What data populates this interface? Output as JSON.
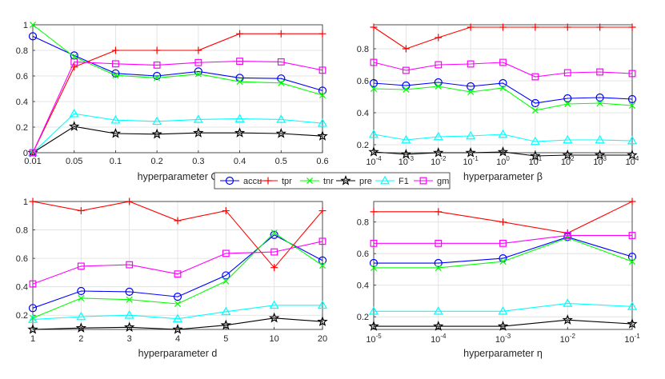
{
  "chart_data": {
    "type": "line",
    "legend": {
      "placement": "center",
      "entries": [
        {
          "name": "accu",
          "color": "#0000ff",
          "marker": "circle"
        },
        {
          "name": "tpr",
          "color": "#ff0000",
          "marker": "plus"
        },
        {
          "name": "tnr",
          "color": "#00ff00",
          "marker": "x"
        },
        {
          "name": "pre",
          "color": "#000000",
          "marker": "star"
        },
        {
          "name": "F1",
          "color": "#00ffff",
          "marker": "triangle"
        },
        {
          "name": "gm",
          "color": "#ff00ff",
          "marker": "square"
        }
      ]
    },
    "panels": [
      {
        "id": "c",
        "xlabel": "hyperparameter C",
        "ylim": [
          0,
          1
        ],
        "yticks": [
          0,
          0.2,
          0.4,
          0.6,
          0.8,
          1
        ],
        "ytick_labels": [
          "0",
          "0.2",
          "0.4",
          "0.6",
          "0.8",
          "1"
        ],
        "categories": [
          "0.01",
          "0.05",
          "0.1",
          "0.2",
          "0.3",
          "0.4",
          "0.5",
          "0.6"
        ],
        "series": [
          {
            "name": "accu",
            "values": [
              0.91,
              0.76,
              0.62,
              0.6,
              0.635,
              0.585,
              0.58,
              0.485
            ]
          },
          {
            "name": "tpr",
            "values": [
              0.0,
              0.67,
              0.8,
              0.8,
              0.8,
              0.93,
              0.93,
              0.93
            ]
          },
          {
            "name": "tnr",
            "values": [
              1.0,
              0.75,
              0.605,
              0.585,
              0.615,
              0.555,
              0.545,
              0.45
            ]
          },
          {
            "name": "pre",
            "values": [
              0.0,
              0.205,
              0.15,
              0.145,
              0.155,
              0.155,
              0.15,
              0.13
            ]
          },
          {
            "name": "F1",
            "values": [
              0.0,
              0.305,
              0.255,
              0.245,
              0.26,
              0.265,
              0.26,
              0.23
            ]
          },
          {
            "name": "gm",
            "values": [
              0.0,
              0.71,
              0.695,
              0.685,
              0.705,
              0.715,
              0.71,
              0.645
            ]
          }
        ]
      },
      {
        "id": "beta",
        "xlabel": "hyperparameter β",
        "ylim": [
          0.15,
          0.95
        ],
        "yticks": [
          0.2,
          0.4,
          0.6,
          0.8
        ],
        "ytick_labels": [
          "0.2",
          "0.4",
          "0.6",
          "0.8"
        ],
        "categories": [
          {
            "base": "10",
            "exp": "-4"
          },
          {
            "base": "10",
            "exp": "-3"
          },
          {
            "base": "10",
            "exp": "-2"
          },
          {
            "base": "10",
            "exp": "-1"
          },
          {
            "base": "10",
            "exp": "0"
          },
          {
            "base": "10",
            "exp": "1"
          },
          {
            "base": "10",
            "exp": "2"
          },
          {
            "base": "10",
            "exp": "3"
          },
          {
            "base": "10",
            "exp": "4"
          }
        ],
        "series": [
          {
            "name": "accu",
            "values": [
              0.585,
              0.57,
              0.59,
              0.565,
              0.585,
              0.46,
              0.49,
              0.495,
              0.485
            ]
          },
          {
            "name": "tpr",
            "values": [
              0.935,
              0.8,
              0.87,
              0.935,
              0.935,
              0.935,
              0.935,
              0.935,
              0.935
            ]
          },
          {
            "name": "tnr",
            "values": [
              0.55,
              0.545,
              0.565,
              0.53,
              0.555,
              0.415,
              0.455,
              0.46,
              0.445
            ]
          },
          {
            "name": "pre",
            "values": [
              0.155,
              0.14,
              0.15,
              0.15,
              0.155,
              0.13,
              0.135,
              0.135,
              0.135
            ]
          },
          {
            "name": "F1",
            "values": [
              0.265,
              0.23,
              0.25,
              0.255,
              0.265,
              0.22,
              0.23,
              0.23,
              0.225
            ]
          },
          {
            "name": "gm",
            "values": [
              0.715,
              0.665,
              0.7,
              0.705,
              0.715,
              0.625,
              0.65,
              0.655,
              0.645
            ]
          }
        ]
      },
      {
        "id": "d",
        "xlabel": "hyperparameter d",
        "ylim": [
          0.1,
          1
        ],
        "yticks": [
          0.2,
          0.4,
          0.6,
          0.8,
          1
        ],
        "ytick_labels": [
          "0.2",
          "0.4",
          "0.6",
          "0.8",
          "1"
        ],
        "categories": [
          "1",
          "2",
          "3",
          "4",
          "5",
          "10",
          "20"
        ],
        "series": [
          {
            "name": "accu",
            "values": [
              0.25,
              0.37,
              0.365,
              0.33,
              0.48,
              0.765,
              0.585
            ]
          },
          {
            "name": "tpr",
            "values": [
              1.0,
              0.935,
              1.0,
              0.865,
              0.935,
              0.535,
              0.935
            ]
          },
          {
            "name": "tnr",
            "values": [
              0.18,
              0.32,
              0.31,
              0.28,
              0.44,
              0.78,
              0.55
            ]
          },
          {
            "name": "pre",
            "values": [
              0.1,
              0.11,
              0.115,
              0.1,
              0.13,
              0.18,
              0.155
            ]
          },
          {
            "name": "F1",
            "values": [
              0.17,
              0.19,
              0.2,
              0.175,
              0.225,
              0.27,
              0.27
            ]
          },
          {
            "name": "gm",
            "values": [
              0.42,
              0.545,
              0.555,
              0.49,
              0.635,
              0.645,
              0.72
            ]
          }
        ]
      },
      {
        "id": "eta",
        "xlabel": "hyperparameter η",
        "ylim": [
          0.12,
          0.93
        ],
        "yticks": [
          0.2,
          0.4,
          0.6,
          0.8
        ],
        "ytick_labels": [
          "0.2",
          "0.4",
          "0.6",
          "0.8"
        ],
        "categories": [
          {
            "base": "10",
            "exp": "-5"
          },
          {
            "base": "10",
            "exp": "-4"
          },
          {
            "base": "10",
            "exp": "-3"
          },
          {
            "base": "10",
            "exp": "-2"
          },
          {
            "base": "10",
            "exp": "-1"
          }
        ],
        "series": [
          {
            "name": "accu",
            "values": [
              0.54,
              0.54,
              0.57,
              0.705,
              0.58
            ]
          },
          {
            "name": "tpr",
            "values": [
              0.865,
              0.865,
              0.8,
              0.73,
              0.93
            ]
          },
          {
            "name": "tnr",
            "values": [
              0.51,
              0.51,
              0.55,
              0.7,
              0.55
            ]
          },
          {
            "name": "pre",
            "values": [
              0.14,
              0.14,
              0.14,
              0.18,
              0.155
            ]
          },
          {
            "name": "F1",
            "values": [
              0.235,
              0.235,
              0.235,
              0.285,
              0.265
            ]
          },
          {
            "name": "gm",
            "values": [
              0.665,
              0.665,
              0.665,
              0.715,
              0.715
            ]
          }
        ]
      }
    ]
  }
}
